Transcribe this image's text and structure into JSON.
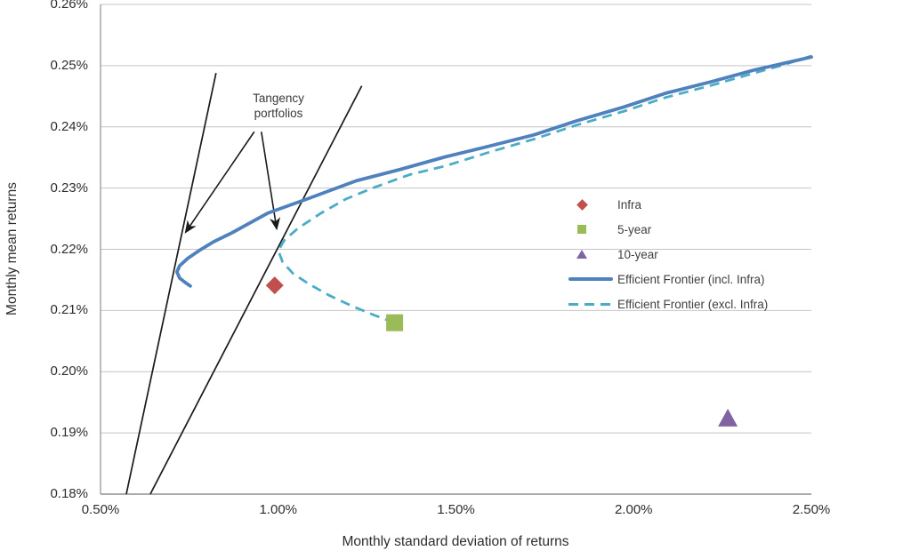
{
  "chart_data": {
    "type": "line",
    "title": "",
    "xlabel": "Monthly standard deviation of returns",
    "ylabel": "Monthly mean returns",
    "xlim": [
      0.5,
      2.5
    ],
    "ylim": [
      0.18,
      0.26
    ],
    "units": "%",
    "grid": "horizontal-only",
    "legend_position": "middle-right",
    "x_ticks": [
      {
        "value": 0.5,
        "label": "0.50%"
      },
      {
        "value": 1.0,
        "label": "1.00%"
      },
      {
        "value": 1.5,
        "label": "1.50%"
      },
      {
        "value": 2.0,
        "label": "2.00%"
      },
      {
        "value": 2.5,
        "label": "2.50%"
      }
    ],
    "y_ticks": [
      {
        "value": 0.26,
        "label": "0.26%"
      },
      {
        "value": 0.25,
        "label": "0.25%"
      },
      {
        "value": 0.24,
        "label": "0.24%"
      },
      {
        "value": 0.23,
        "label": "0.23%"
      },
      {
        "value": 0.22,
        "label": "0.22%"
      },
      {
        "value": 0.21,
        "label": "0.21%"
      },
      {
        "value": 0.2,
        "label": "0.20%"
      },
      {
        "value": 0.19,
        "label": "0.19%"
      },
      {
        "value": 0.18,
        "label": "0.18%"
      }
    ],
    "series": [
      {
        "name": "Efficient Frontier (incl. Infra)",
        "kind": "line",
        "style": "solid",
        "color": "#4F81BD",
        "width": 3.8,
        "points": [
          [
            2.5,
            0.2514
          ],
          [
            2.34,
            0.2493
          ],
          [
            2.22,
            0.2474
          ],
          [
            2.09,
            0.2455
          ],
          [
            1.97,
            0.2432
          ],
          [
            1.84,
            0.241
          ],
          [
            1.72,
            0.2387
          ],
          [
            1.59,
            0.2368
          ],
          [
            1.47,
            0.2351
          ],
          [
            1.34,
            0.233
          ],
          [
            1.22,
            0.2312
          ],
          [
            1.09,
            0.2284
          ],
          [
            0.97,
            0.2259
          ],
          [
            0.87,
            0.2227
          ],
          [
            0.8175,
            0.2212
          ],
          [
            0.7775,
            0.2198
          ],
          [
            0.745,
            0.2185
          ],
          [
            0.7225,
            0.2173
          ],
          [
            0.715,
            0.2163
          ],
          [
            0.7225,
            0.2153
          ],
          [
            0.7375,
            0.2146
          ],
          [
            0.7525,
            0.214
          ]
        ]
      },
      {
        "name": "Efficient Frontier (excl. Infra)",
        "kind": "line",
        "style": "dashed",
        "color": "#4BACC6",
        "width": 2.8,
        "points": [
          [
            2.5,
            0.2516
          ],
          [
            2.42,
            0.2501
          ],
          [
            2.34,
            0.2488
          ],
          [
            2.22,
            0.2468
          ],
          [
            2.09,
            0.2448
          ],
          [
            1.97,
            0.2425
          ],
          [
            1.84,
            0.2403
          ],
          [
            1.72,
            0.238
          ],
          [
            1.59,
            0.2358
          ],
          [
            1.47,
            0.2336
          ],
          [
            1.37,
            0.2322
          ],
          [
            1.27,
            0.2301
          ],
          [
            1.19,
            0.2282
          ],
          [
            1.12,
            0.2259
          ],
          [
            1.055,
            0.2234
          ],
          [
            1.0175,
            0.2215
          ],
          [
            1.0,
            0.2198
          ],
          [
            1.0125,
            0.2179
          ],
          [
            1.0425,
            0.216
          ],
          [
            1.0875,
            0.2143
          ],
          [
            1.1425,
            0.2125
          ],
          [
            1.205,
            0.2108
          ],
          [
            1.2675,
            0.2093
          ],
          [
            1.3275,
            0.208
          ]
        ]
      },
      {
        "name": "Infra",
        "kind": "scatter",
        "marker": "diamond",
        "color": "#C0504D",
        "points": [
          [
            0.99,
            0.2141
          ]
        ]
      },
      {
        "name": "5-year",
        "kind": "scatter",
        "marker": "square",
        "color": "#9BBB59",
        "points": [
          [
            1.3275,
            0.208
          ]
        ]
      },
      {
        "name": "10-year",
        "kind": "scatter",
        "marker": "triangle",
        "color": "#8064A2",
        "points": [
          [
            2.265,
            0.1925
          ]
        ]
      }
    ],
    "annotation": {
      "text": "Tangency portfolios"
    },
    "tangency_lines": [
      {
        "from": [
          0.5725,
          0.18
        ],
        "to": [
          0.825,
          0.2488
        ]
      },
      {
        "from": [
          0.64,
          0.18
        ],
        "to": [
          1.235,
          0.2467
        ]
      }
    ],
    "arrows": [
      {
        "from": [
          0.9325,
          0.2392
        ],
        "to": [
          0.742,
          0.223
        ]
      },
      {
        "from": [
          0.9525,
          0.2392
        ],
        "to": [
          0.995,
          0.2236
        ]
      }
    ],
    "legend": [
      {
        "label": "Infra",
        "marker": "diamond",
        "color": "#C0504D"
      },
      {
        "label": "5-year",
        "marker": "square",
        "color": "#9BBB59"
      },
      {
        "label": "10-year",
        "marker": "triangle",
        "color": "#8064A2"
      },
      {
        "label": "Efficient Frontier (incl. Infra)",
        "marker": "solid-line",
        "color": "#4F81BD"
      },
      {
        "label": "Efficient Frontier (excl. Infra)",
        "marker": "dashed-line",
        "color": "#4BACC6"
      }
    ],
    "colors": {
      "grid": "#c4c4c4",
      "axis": "#8f8f8f",
      "annotation_lines": "#1a1a1a"
    }
  }
}
